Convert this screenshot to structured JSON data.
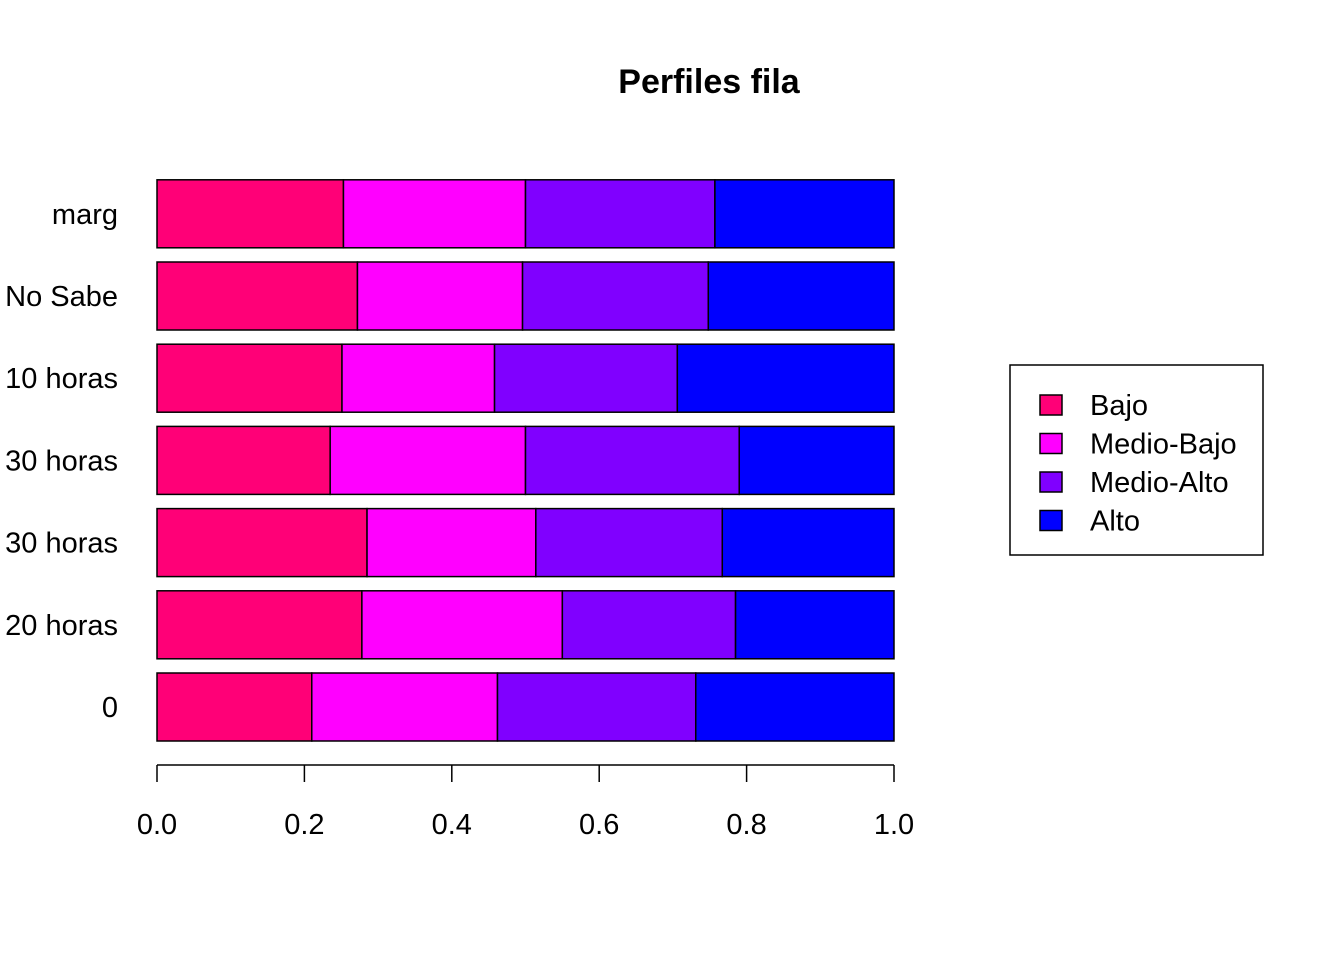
{
  "chart_data": {
    "type": "bar",
    "orientation": "horizontal",
    "stacked": true,
    "title": "Perfiles fila",
    "xlabel": "",
    "ylabel": "",
    "xlim": [
      0,
      1
    ],
    "x_ticks": [
      "0.0",
      "0.2",
      "0.4",
      "0.6",
      "0.8",
      "1.0"
    ],
    "categories": [
      "0",
      "20 horas",
      "30 horas",
      "30 horas",
      "10 horas",
      "No Sabe",
      "marg"
    ],
    "series": [
      {
        "name": "Bajo",
        "color": "#FF0077",
        "values": [
          0.21,
          0.278,
          0.285,
          0.235,
          0.251,
          0.272,
          0.253
        ]
      },
      {
        "name": "Medio-Bajo",
        "color": "#FF00FF",
        "values": [
          0.252,
          0.272,
          0.229,
          0.265,
          0.207,
          0.224,
          0.247
        ]
      },
      {
        "name": "Medio-Alto",
        "color": "#8000FF",
        "values": [
          0.269,
          0.235,
          0.253,
          0.29,
          0.248,
          0.252,
          0.257
        ]
      },
      {
        "name": "Alto",
        "color": "#0000FF",
        "values": [
          0.269,
          0.215,
          0.233,
          0.21,
          0.294,
          0.252,
          0.243
        ]
      }
    ],
    "legend_position": "right",
    "grid": false
  }
}
